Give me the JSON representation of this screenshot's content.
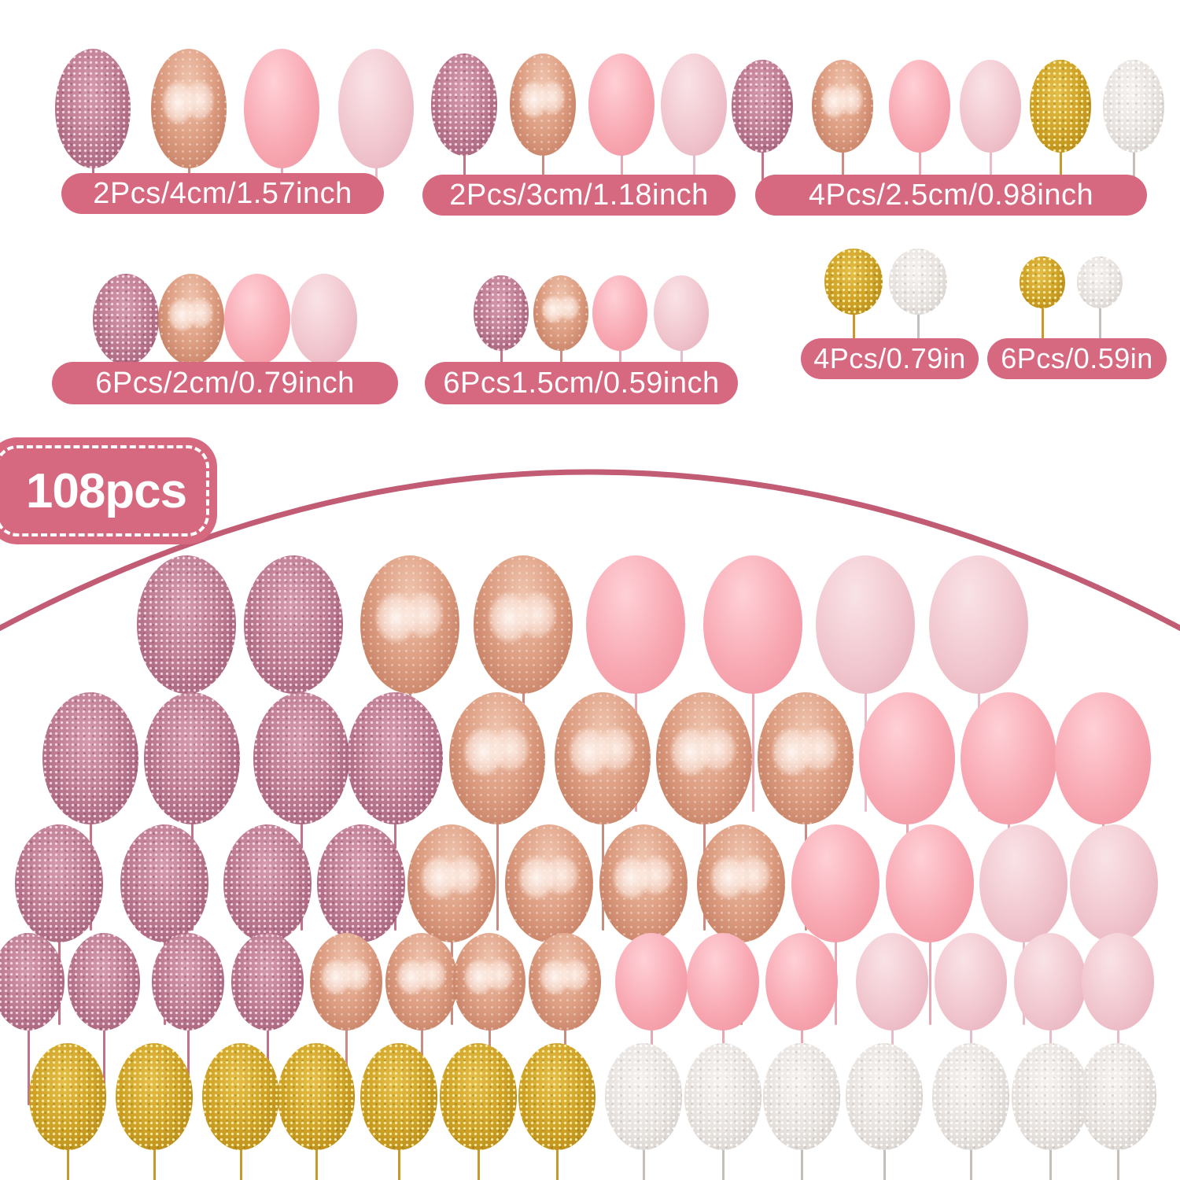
{
  "badge": {
    "label": "108pcs"
  },
  "colors": {
    "accent": "#d6687f",
    "arc": "#c25b74",
    "label_text": "#ffffff",
    "balls": {
      "glitter-pink": "#c07f95",
      "rosegold": "#dc9c80",
      "pink": "#f8a8b2",
      "lightpink": "#f1c6ce",
      "glitter-gold": "#cfa227",
      "glitter-white": "#e7e2de"
    }
  },
  "groups": [
    {
      "label": "2Pcs/4cm/1.57inch",
      "balls": [
        "glitter-pink",
        "rosegold",
        "pink",
        "lightpink"
      ]
    },
    {
      "label": "2Pcs/3cm/1.18inch",
      "balls": [
        "glitter-pink",
        "rosegold",
        "pink",
        "lightpink"
      ]
    },
    {
      "label": "4Pcs/2.5cm/0.98inch",
      "balls": [
        "glitter-pink",
        "rosegold",
        "pink",
        "lightpink",
        "glitter-gold",
        "glitter-white"
      ]
    },
    {
      "label": "6Pcs/2cm/0.79inch",
      "balls": [
        "glitter-pink",
        "rosegold",
        "pink",
        "lightpink"
      ]
    },
    {
      "label": "6Pcs1.5cm/0.59inch",
      "balls": [
        "glitter-pink",
        "rosegold",
        "pink",
        "lightpink"
      ]
    },
    {
      "label": "4Pcs/0.79in",
      "balls": [
        "glitter-gold",
        "glitter-white"
      ]
    },
    {
      "label": "6Pcs/0.59in",
      "balls": [
        "glitter-gold",
        "glitter-white"
      ]
    }
  ],
  "display_rows": [
    {
      "balls": [
        "glitter-pink",
        "glitter-pink",
        "rosegold",
        "rosegold",
        "pink",
        "pink",
        "lightpink",
        "lightpink"
      ]
    },
    {
      "balls": [
        "glitter-pink",
        "glitter-pink",
        "glitter-pink",
        "glitter-pink",
        "rosegold",
        "rosegold",
        "rosegold",
        "rosegold",
        "pink",
        "pink",
        "pink"
      ]
    },
    {
      "balls": [
        "glitter-pink",
        "glitter-pink",
        "glitter-pink",
        "glitter-pink",
        "rosegold",
        "rosegold",
        "rosegold",
        "rosegold",
        "pink",
        "pink",
        "lightpink",
        "lightpink"
      ]
    },
    {
      "balls": [
        "glitter-pink",
        "glitter-pink",
        "glitter-pink",
        "glitter-pink",
        "rosegold",
        "rosegold",
        "rosegold",
        "rosegold",
        "pink",
        "pink",
        "pink",
        "lightpink",
        "lightpink",
        "lightpink",
        "lightpink"
      ]
    },
    {
      "balls": [
        "glitter-gold",
        "glitter-gold",
        "glitter-gold",
        "glitter-gold",
        "glitter-gold",
        "glitter-gold",
        "glitter-gold",
        "glitter-white",
        "glitter-white",
        "glitter-white",
        "glitter-white",
        "glitter-white",
        "glitter-white",
        "glitter-white"
      ]
    }
  ]
}
